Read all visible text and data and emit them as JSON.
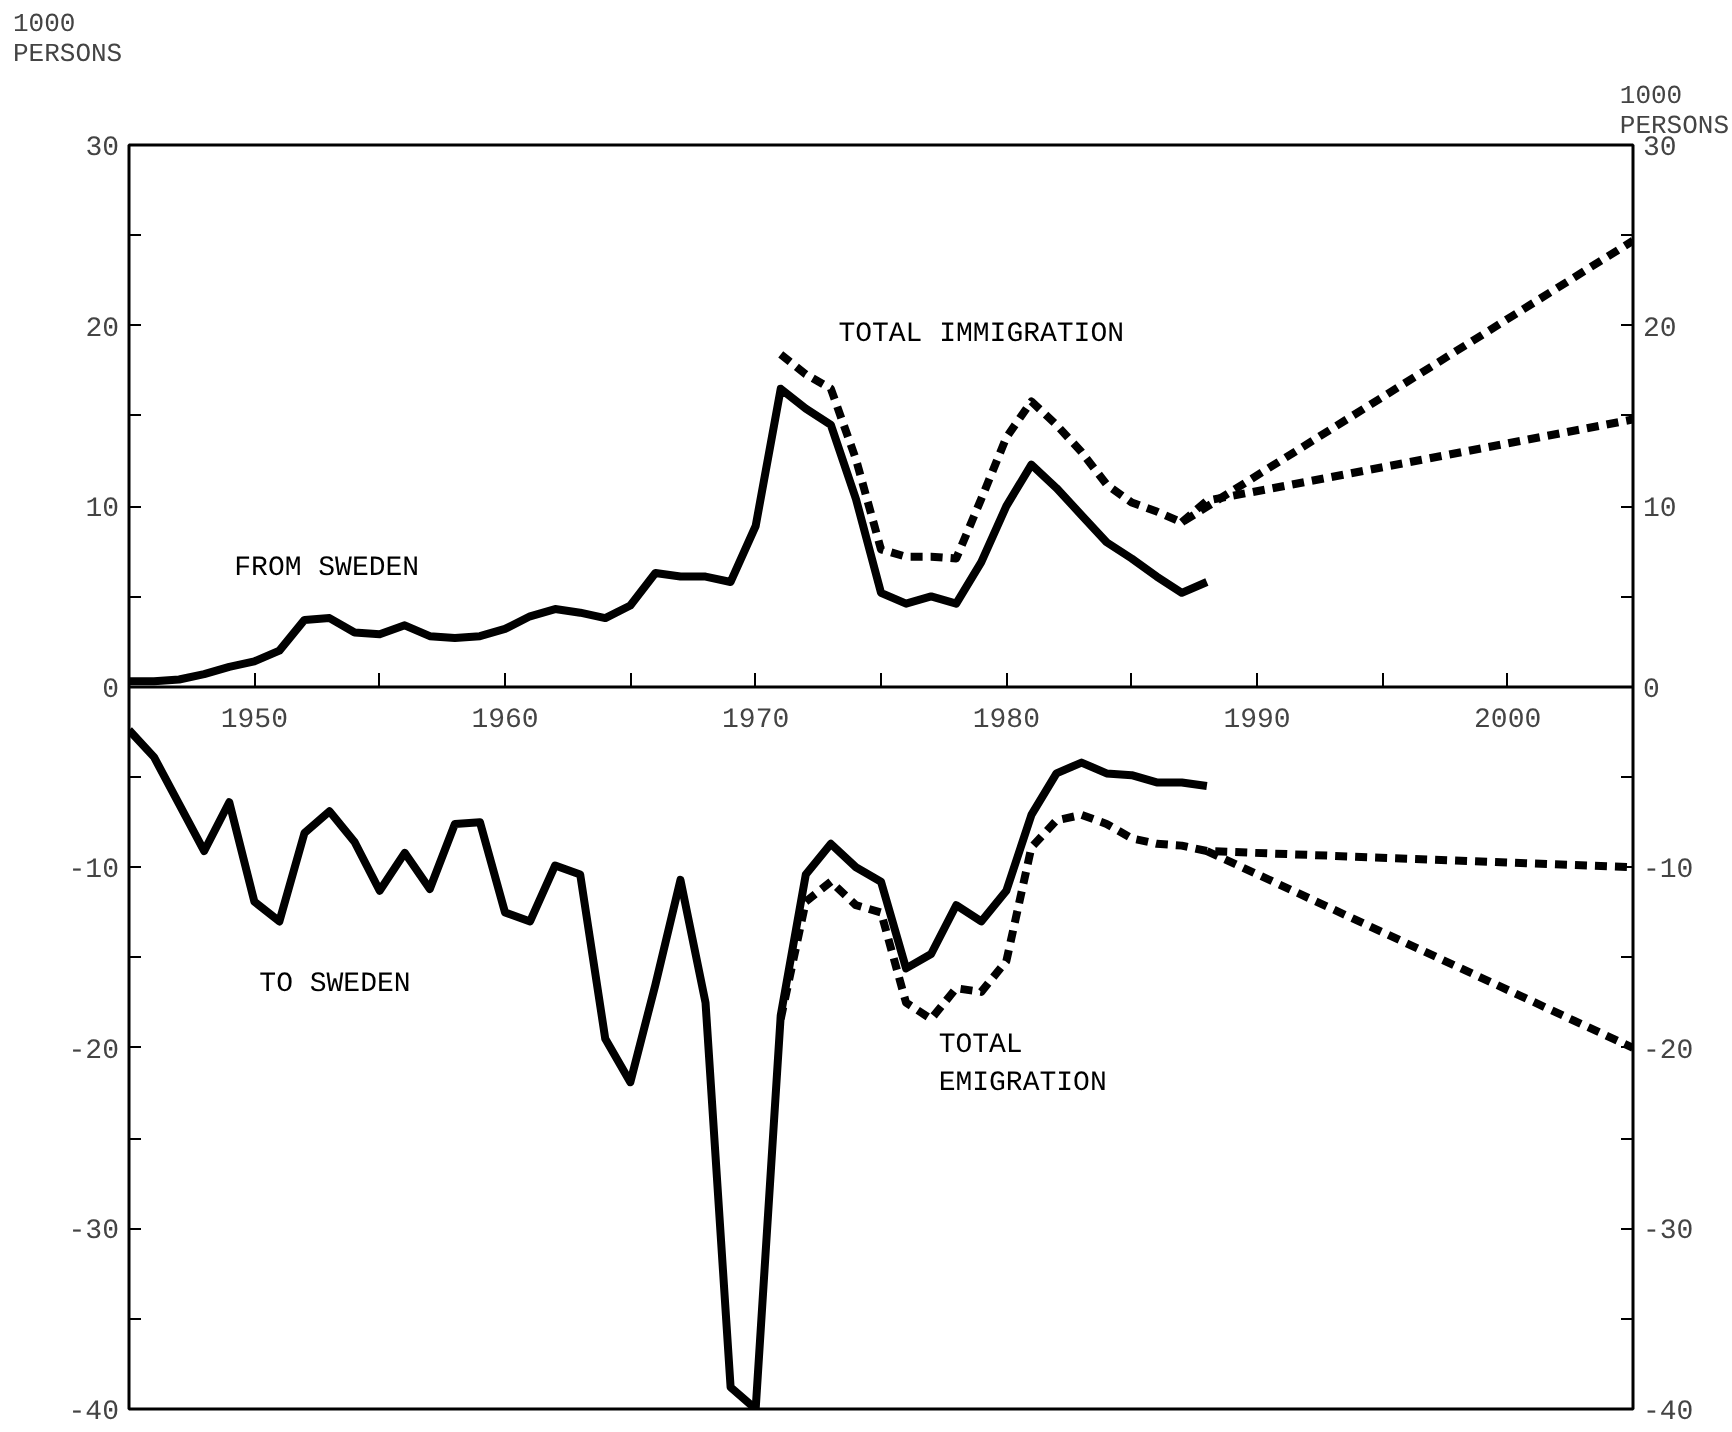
{
  "chart_data": {
    "type": "line",
    "ylabel": "1000\nPERSONS",
    "y2label": "1000\nPERSONS",
    "xlim": [
      1945,
      2005
    ],
    "xticks": [
      {
        "value": 1950,
        "label": "1950"
      },
      {
        "value": 1955,
        "label": null
      },
      {
        "value": 1960,
        "label": "1960"
      },
      {
        "value": 1965,
        "label": null
      },
      {
        "value": 1970,
        "label": "1970"
      },
      {
        "value": 1975,
        "label": null
      },
      {
        "value": 1980,
        "label": "1980"
      },
      {
        "value": 1985,
        "label": null
      },
      {
        "value": 1990,
        "label": "1990"
      },
      {
        "value": 1995,
        "label": null
      },
      {
        "value": 2000,
        "label": "2000"
      }
    ],
    "ylim": [
      -40,
      30
    ],
    "yticks": [
      -40,
      {
        "value": -35,
        "label": null
      },
      -30,
      {
        "value": -25,
        "label": null
      },
      -20,
      {
        "value": -15,
        "label": null
      },
      -10,
      {
        "value": -5,
        "label": null
      },
      0,
      {
        "value": 5,
        "label": null
      },
      10,
      {
        "value": 15,
        "label": null
      },
      20,
      {
        "value": 25,
        "label": null
      },
      30
    ],
    "y2lim": [
      -40,
      30
    ],
    "y2ticks": [
      -40,
      {
        "value": -35,
        "label": null
      },
      -30,
      {
        "value": -25,
        "label": null
      },
      -20,
      {
        "value": -15,
        "label": null
      },
      -10,
      {
        "value": -5,
        "label": null
      },
      0,
      {
        "value": 5,
        "label": null
      },
      10,
      {
        "value": 15,
        "label": null
      },
      20,
      {
        "value": 25,
        "label": null
      },
      30
    ],
    "grid": false,
    "series": [
      {
        "name": "FROM SWEDEN",
        "color": "#000000",
        "line_style": "solid",
        "x": [
          1945,
          1946,
          1947,
          1948,
          1949,
          1950,
          1951,
          1952,
          1953,
          1954,
          1955,
          1956,
          1957,
          1958,
          1959,
          1960,
          1961,
          1962,
          1963,
          1964,
          1965,
          1966,
          1967,
          1968,
          1969,
          1970,
          1971,
          1972,
          1973,
          1974,
          1975,
          1976,
          1977,
          1978,
          1979,
          1980,
          1981,
          1982,
          1983,
          1984,
          1985,
          1986,
          1987,
          1988
        ],
        "values": [
          0.3,
          0.3,
          0.4,
          0.7,
          1.1,
          1.4,
          2.0,
          3.7,
          3.8,
          3.0,
          2.9,
          3.4,
          2.8,
          2.7,
          2.8,
          3.2,
          3.9,
          4.3,
          4.1,
          3.8,
          4.5,
          6.3,
          6.1,
          6.1,
          5.8,
          8.9,
          16.5,
          15.4,
          14.5,
          10.4,
          5.2,
          4.6,
          5.0,
          4.6,
          6.9,
          10.0,
          12.3,
          11.0,
          9.5,
          8.0,
          7.1,
          6.1,
          5.2,
          5.8
        ]
      },
      {
        "name": "TOTAL IMMIGRATION",
        "color": "#000000",
        "line_style": "dashed",
        "x": [
          1971,
          1972,
          1973,
          1974,
          1975,
          1976,
          1977,
          1978,
          1979,
          1980,
          1981,
          1982,
          1983,
          1984,
          1985,
          1986,
          1987,
          2005
        ],
        "values": [
          18.4,
          17.3,
          16.5,
          12.6,
          7.6,
          7.2,
          7.2,
          7.1,
          10.4,
          13.8,
          15.8,
          14.5,
          13.0,
          11.2,
          10.2,
          9.7,
          9.1,
          24.7
        ]
      },
      {
        "color": "#000000",
        "line_style": "dashed",
        "x": [
          1987,
          1988,
          2005
        ],
        "values": [
          9.1,
          10.3,
          14.8
        ]
      },
      {
        "name": "TO SWEDEN",
        "color": "#000000",
        "line_style": "solid",
        "x": [
          1945,
          1946,
          1947,
          1948,
          1949,
          1950,
          1951,
          1952,
          1953,
          1954,
          1955,
          1956,
          1957,
          1958,
          1959,
          1960,
          1961,
          1962,
          1963,
          1964,
          1965,
          1966,
          1967,
          1968,
          1969,
          1970,
          1971,
          1972,
          1973,
          1974,
          1975,
          1976,
          1977,
          1978,
          1979,
          1980,
          1981,
          1982,
          1983,
          1984,
          1985,
          1986,
          1987,
          1988
        ],
        "values": [
          -2.4,
          -3.9,
          -6.5,
          -9.1,
          -6.4,
          -11.9,
          -13.0,
          -8.1,
          -6.9,
          -8.6,
          -11.3,
          -9.2,
          -11.2,
          -7.6,
          -7.5,
          -12.5,
          -13.0,
          -9.9,
          -10.4,
          -19.5,
          -21.9,
          -16.5,
          -10.7,
          -17.5,
          -38.8,
          -40.0,
          -18.2,
          -10.4,
          -8.7,
          -10.0,
          -10.8,
          -15.6,
          -14.8,
          -12.1,
          -13.0,
          -11.3,
          -7.1,
          -4.8,
          -4.2,
          -4.8,
          -4.9,
          -5.3,
          -5.3,
          -5.5
        ]
      },
      {
        "name": "TOTAL\nEMIGRATION",
        "color": "#000000",
        "line_style": "dashed",
        "x": [
          1971,
          1972,
          1973,
          1974,
          1975,
          1976,
          1977,
          1978,
          1979,
          1980,
          1981,
          1982,
          1983,
          1984,
          1985,
          1986,
          1987,
          1988,
          2005
        ],
        "values": [
          -18.4,
          -11.9,
          -10.8,
          -12.1,
          -12.5,
          -17.5,
          -18.4,
          -16.7,
          -16.9,
          -15.2,
          -8.9,
          -7.4,
          -7.1,
          -7.6,
          -8.4,
          -8.7,
          -8.8,
          -9.1,
          -10.0
        ]
      },
      {
        "color": "#000000",
        "line_style": "dashed",
        "x": [
          1988,
          2005
        ],
        "values": [
          -9.1,
          -20.0
        ]
      }
    ]
  }
}
